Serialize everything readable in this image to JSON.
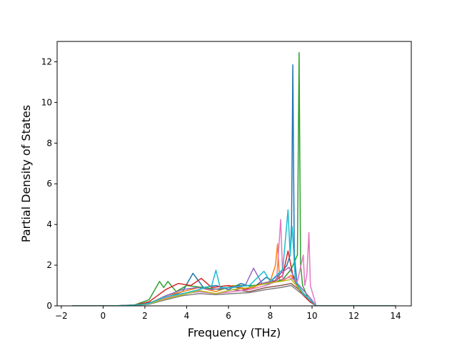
{
  "chart_data": {
    "type": "line",
    "title": "",
    "xlabel": "Frequency (THz)",
    "ylabel": "Partial Density of States",
    "xlim": [
      -2.2,
      14.75
    ],
    "ylim": [
      0,
      13.0
    ],
    "xticks": [
      -2,
      0,
      2,
      4,
      6,
      8,
      10,
      12,
      14
    ],
    "yticks": [
      0,
      2,
      4,
      6,
      8,
      10,
      12
    ],
    "grid": false,
    "legend": "none",
    "colors": [
      "#1f77b4",
      "#ff7f0e",
      "#2ca02c",
      "#d62728",
      "#9467bd",
      "#8c564b",
      "#e377c2",
      "#7f7f7f",
      "#bcbd22",
      "#17becf"
    ],
    "series": [
      {
        "color": "#1f77b4",
        "x": [
          -1.5,
          0.5,
          1.5,
          2.2,
          3.0,
          3.8,
          4.3,
          4.8,
          5.4,
          6.0,
          6.6,
          7.2,
          7.8,
          8.2,
          8.5,
          8.8,
          8.95,
          9.02,
          9.08,
          9.15,
          9.3,
          9.6,
          9.9,
          10.2,
          14.0
        ],
        "y": [
          0,
          0,
          0.05,
          0.15,
          0.4,
          0.7,
          1.6,
          0.9,
          1.0,
          0.8,
          1.1,
          0.9,
          1.4,
          1.2,
          1.6,
          2.0,
          2.5,
          4.0,
          11.85,
          2.5,
          0.9,
          0.5,
          0.2,
          0,
          0
        ]
      },
      {
        "color": "#ff7f0e",
        "x": [
          -1.5,
          0.5,
          1.5,
          2.2,
          3.0,
          3.8,
          4.6,
          5.4,
          6.2,
          7.0,
          7.6,
          8.0,
          8.25,
          8.35,
          8.45,
          8.7,
          9.0,
          9.4,
          9.9,
          10.2,
          14.0
        ],
        "y": [
          0,
          0,
          0.03,
          0.12,
          0.5,
          0.7,
          0.9,
          0.7,
          1.0,
          0.8,
          1.1,
          1.2,
          2.0,
          3.05,
          1.2,
          1.3,
          1.5,
          0.8,
          0.3,
          0,
          0
        ]
      },
      {
        "color": "#2ca02c",
        "x": [
          -1.5,
          0.5,
          1.5,
          2.2,
          2.7,
          2.9,
          3.1,
          3.5,
          4.0,
          4.8,
          5.6,
          6.4,
          7.2,
          8.0,
          8.6,
          9.0,
          9.3,
          9.38,
          9.45,
          9.55,
          9.8,
          10.2,
          14.0
        ],
        "y": [
          0,
          0,
          0.04,
          0.3,
          1.2,
          0.9,
          1.2,
          0.7,
          1.0,
          0.9,
          0.8,
          1.0,
          1.0,
          1.1,
          1.3,
          1.8,
          2.5,
          12.45,
          2.0,
          1.0,
          0.4,
          0,
          0
        ]
      },
      {
        "color": "#d62728",
        "x": [
          -1.5,
          0.5,
          1.5,
          2.2,
          3.0,
          3.6,
          4.2,
          4.7,
          5.2,
          6.0,
          6.8,
          7.6,
          8.2,
          8.6,
          8.85,
          9.1,
          9.5,
          9.9,
          10.2,
          14.0
        ],
        "y": [
          0,
          0,
          0.03,
          0.2,
          0.8,
          1.1,
          1.0,
          1.35,
          0.9,
          1.0,
          0.8,
          1.1,
          1.2,
          1.5,
          2.7,
          1.4,
          0.6,
          0.2,
          0,
          0
        ]
      },
      {
        "color": "#9467bd",
        "x": [
          -1.5,
          0.5,
          1.5,
          2.2,
          3.0,
          3.8,
          4.5,
          5.2,
          6.0,
          6.8,
          7.2,
          7.6,
          8.0,
          8.5,
          8.9,
          9.3,
          9.9,
          10.2,
          14.0
        ],
        "y": [
          0,
          0,
          0.02,
          0.1,
          0.5,
          0.8,
          0.9,
          0.8,
          0.9,
          1.0,
          1.85,
          1.1,
          1.2,
          1.6,
          1.9,
          1.1,
          0.4,
          0,
          0
        ]
      },
      {
        "color": "#8c564b",
        "x": [
          -1.5,
          0.5,
          1.5,
          2.2,
          3.0,
          3.8,
          4.6,
          5.4,
          6.2,
          7.0,
          7.8,
          8.5,
          9.0,
          9.5,
          9.9,
          10.2,
          14.0
        ],
        "y": [
          0,
          0,
          0.02,
          0.1,
          0.4,
          0.6,
          0.7,
          0.6,
          0.8,
          0.7,
          0.9,
          1.0,
          1.1,
          0.7,
          0.3,
          0,
          0
        ]
      },
      {
        "color": "#e377c2",
        "x": [
          -1.5,
          0.5,
          1.5,
          2.2,
          3.0,
          3.8,
          4.6,
          5.4,
          6.2,
          7.0,
          7.8,
          8.3,
          8.5,
          8.6,
          8.9,
          9.3,
          9.58,
          9.65,
          9.75,
          9.85,
          9.92,
          10.2,
          14.0
        ],
        "y": [
          0,
          0,
          0.02,
          0.1,
          0.4,
          0.6,
          0.7,
          0.6,
          0.7,
          0.8,
          1.0,
          1.2,
          4.25,
          1.3,
          1.4,
          1.2,
          2.5,
          1.0,
          1.5,
          3.6,
          1.0,
          0,
          0
        ]
      },
      {
        "color": "#7f7f7f",
        "x": [
          -1.5,
          0.5,
          1.5,
          2.2,
          3.0,
          3.8,
          4.6,
          5.4,
          6.2,
          7.0,
          7.8,
          8.5,
          9.0,
          9.5,
          9.9,
          10.2,
          14.0
        ],
        "y": [
          0,
          0,
          0.02,
          0.08,
          0.3,
          0.5,
          0.6,
          0.55,
          0.6,
          0.65,
          0.8,
          0.9,
          1.0,
          0.6,
          0.3,
          0,
          0
        ]
      },
      {
        "color": "#bcbd22",
        "x": [
          -1.5,
          0.5,
          1.5,
          2.2,
          3.0,
          3.8,
          4.6,
          5.4,
          6.2,
          7.0,
          7.8,
          8.5,
          9.0,
          9.5,
          9.9,
          10.2,
          14.0
        ],
        "y": [
          0,
          0,
          0.02,
          0.1,
          0.35,
          0.55,
          0.75,
          0.6,
          0.8,
          0.9,
          1.1,
          1.2,
          1.3,
          0.7,
          0.3,
          0,
          0
        ]
      },
      {
        "color": "#17becf",
        "x": [
          -1.5,
          0.5,
          1.5,
          2.2,
          3.0,
          3.8,
          4.6,
          5.2,
          5.4,
          5.6,
          6.2,
          7.0,
          7.7,
          8.0,
          8.6,
          8.85,
          8.95,
          9.05,
          9.2,
          9.6,
          9.9,
          10.2,
          14.0
        ],
        "y": [
          0,
          0,
          0.02,
          0.12,
          0.45,
          0.6,
          0.8,
          1.0,
          1.75,
          0.9,
          0.9,
          1.0,
          1.7,
          1.2,
          1.8,
          4.72,
          2.5,
          3.9,
          1.2,
          0.6,
          0.3,
          0,
          0
        ]
      }
    ]
  }
}
